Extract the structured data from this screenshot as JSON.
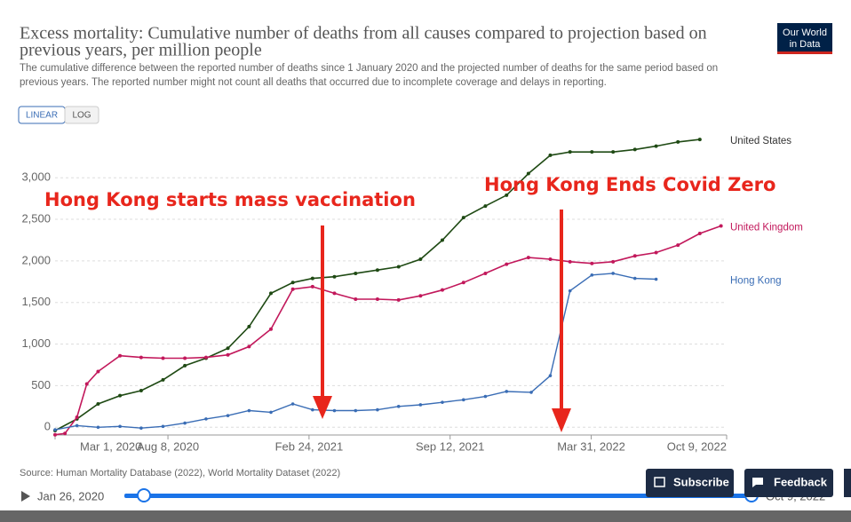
{
  "page": {
    "logo": [
      "Our World",
      "in Data"
    ],
    "scale_options": [
      "LINEAR",
      "LOG"
    ],
    "source": "Source: Human Mortality Database (2022), World Mortality Dataset (2022)",
    "timeline_start": "Jan 26, 2020",
    "timeline_end": "Oct 9, 2022",
    "buttons": [
      "Subscribe",
      "Feedback"
    ]
  },
  "chart_data": {
    "type": "line",
    "title": [
      "Excess mortality: Cumulative number of deaths from all causes compared to projection based on",
      "previous years, per million people"
    ],
    "subtitle": [
      "The cumulative difference between the reported number of deaths since 1 January 2020 and the projected number of deaths for the same period based on",
      "previous years. The reported number might not count all deaths that occurred due to incomplete coverage and delays in reporting."
    ],
    "annotations": [
      "Hong Kong starts mass vaccination",
      "Hong Kong Ends Covid Zero"
    ],
    "xlim": [
      "2020-03-01",
      "2022-10-09"
    ],
    "xticks": [
      {
        "value": "2020-03-01",
        "label": "Mar 1, 2020"
      },
      {
        "value": "2020-08-08",
        "label": "Aug 8, 2020"
      },
      {
        "value": "2021-02-24",
        "label": "Feb 24, 2021"
      },
      {
        "value": "2021-09-12",
        "label": "Sep 12, 2021"
      },
      {
        "value": "2022-03-31",
        "label": "Mar 31, 2022"
      },
      {
        "value": "2022-10-09",
        "label": "Oct 9, 2022"
      }
    ],
    "ylim": [
      -200,
      3600
    ],
    "yticks": [
      0,
      500,
      {
        "value": 1000,
        "label": "1,000"
      },
      {
        "value": 1500,
        "label": "1,500"
      },
      {
        "value": 2000,
        "label": "2,000"
      },
      {
        "value": 2500,
        "label": "2,500"
      },
      {
        "value": 3000,
        "label": "3,000"
      }
    ],
    "grid": true,
    "series": [
      {
        "name": "United States",
        "color": "#1f4a14",
        "markers": true,
        "x": [
          "2020-03-01",
          "2020-04-01",
          "2020-05-01",
          "2020-06-01",
          "2020-07-01",
          "2020-08-01",
          "2020-09-01",
          "2020-10-01",
          "2020-11-01",
          "2020-12-01",
          "2021-01-01",
          "2021-02-01",
          "2021-03-01",
          "2021-04-01",
          "2021-05-01",
          "2021-06-01",
          "2021-07-01",
          "2021-08-01",
          "2021-09-01",
          "2021-10-01",
          "2021-11-01",
          "2021-12-01",
          "2022-01-01",
          "2022-02-01",
          "2022-03-01",
          "2022-04-01",
          "2022-05-01",
          "2022-06-01",
          "2022-07-01",
          "2022-08-01",
          "2022-09-01"
        ],
        "values": [
          -40,
          100,
          280,
          380,
          440,
          570,
          740,
          830,
          950,
          1210,
          1610,
          1740,
          1790,
          1810,
          1850,
          1890,
          1930,
          2020,
          2250,
          2520,
          2660,
          2790,
          3050,
          3270,
          3310,
          3310,
          3310,
          3340,
          3380,
          3430,
          3460
        ]
      },
      {
        "name": "United Kingdom",
        "color": "#c2185b",
        "markers": true,
        "x": [
          "2020-03-01",
          "2020-03-15",
          "2020-04-01",
          "2020-04-15",
          "2020-05-01",
          "2020-06-01",
          "2020-07-01",
          "2020-08-01",
          "2020-09-01",
          "2020-10-01",
          "2020-11-01",
          "2020-12-01",
          "2021-01-01",
          "2021-02-01",
          "2021-03-01",
          "2021-04-01",
          "2021-05-01",
          "2021-06-01",
          "2021-07-01",
          "2021-08-01",
          "2021-09-01",
          "2021-10-01",
          "2021-11-01",
          "2021-12-01",
          "2022-01-01",
          "2022-02-01",
          "2022-03-01",
          "2022-04-01",
          "2022-05-01",
          "2022-06-01",
          "2022-07-01",
          "2022-08-01",
          "2022-09-01",
          "2022-10-01"
        ],
        "values": [
          -90,
          -75,
          120,
          520,
          670,
          860,
          840,
          830,
          830,
          840,
          870,
          970,
          1180,
          1660,
          1690,
          1610,
          1540,
          1540,
          1530,
          1580,
          1650,
          1740,
          1850,
          1960,
          2040,
          2020,
          1990,
          1970,
          1990,
          2060,
          2100,
          2190,
          2330,
          2420
        ]
      },
      {
        "name": "Hong Kong",
        "color": "#3a6db5",
        "markers": false,
        "x": [
          "2020-03-01",
          "2020-04-01",
          "2020-05-01",
          "2020-06-01",
          "2020-07-01",
          "2020-08-01",
          "2020-09-01",
          "2020-10-01",
          "2020-11-01",
          "2020-12-01",
          "2021-01-01",
          "2021-02-01",
          "2021-03-01",
          "2021-04-01",
          "2021-05-01",
          "2021-06-01",
          "2021-07-01",
          "2021-08-01",
          "2021-09-01",
          "2021-10-01",
          "2021-11-01",
          "2021-12-01",
          "2022-01-05",
          "2022-02-01",
          "2022-03-01",
          "2022-04-01",
          "2022-05-01",
          "2022-06-01",
          "2022-07-01"
        ],
        "values": [
          -30,
          20,
          0,
          10,
          -10,
          10,
          50,
          100,
          140,
          200,
          180,
          280,
          210,
          200,
          200,
          210,
          250,
          270,
          300,
          330,
          370,
          430,
          420,
          620,
          1640,
          1830,
          1850,
          1790,
          1780
        ]
      }
    ]
  }
}
